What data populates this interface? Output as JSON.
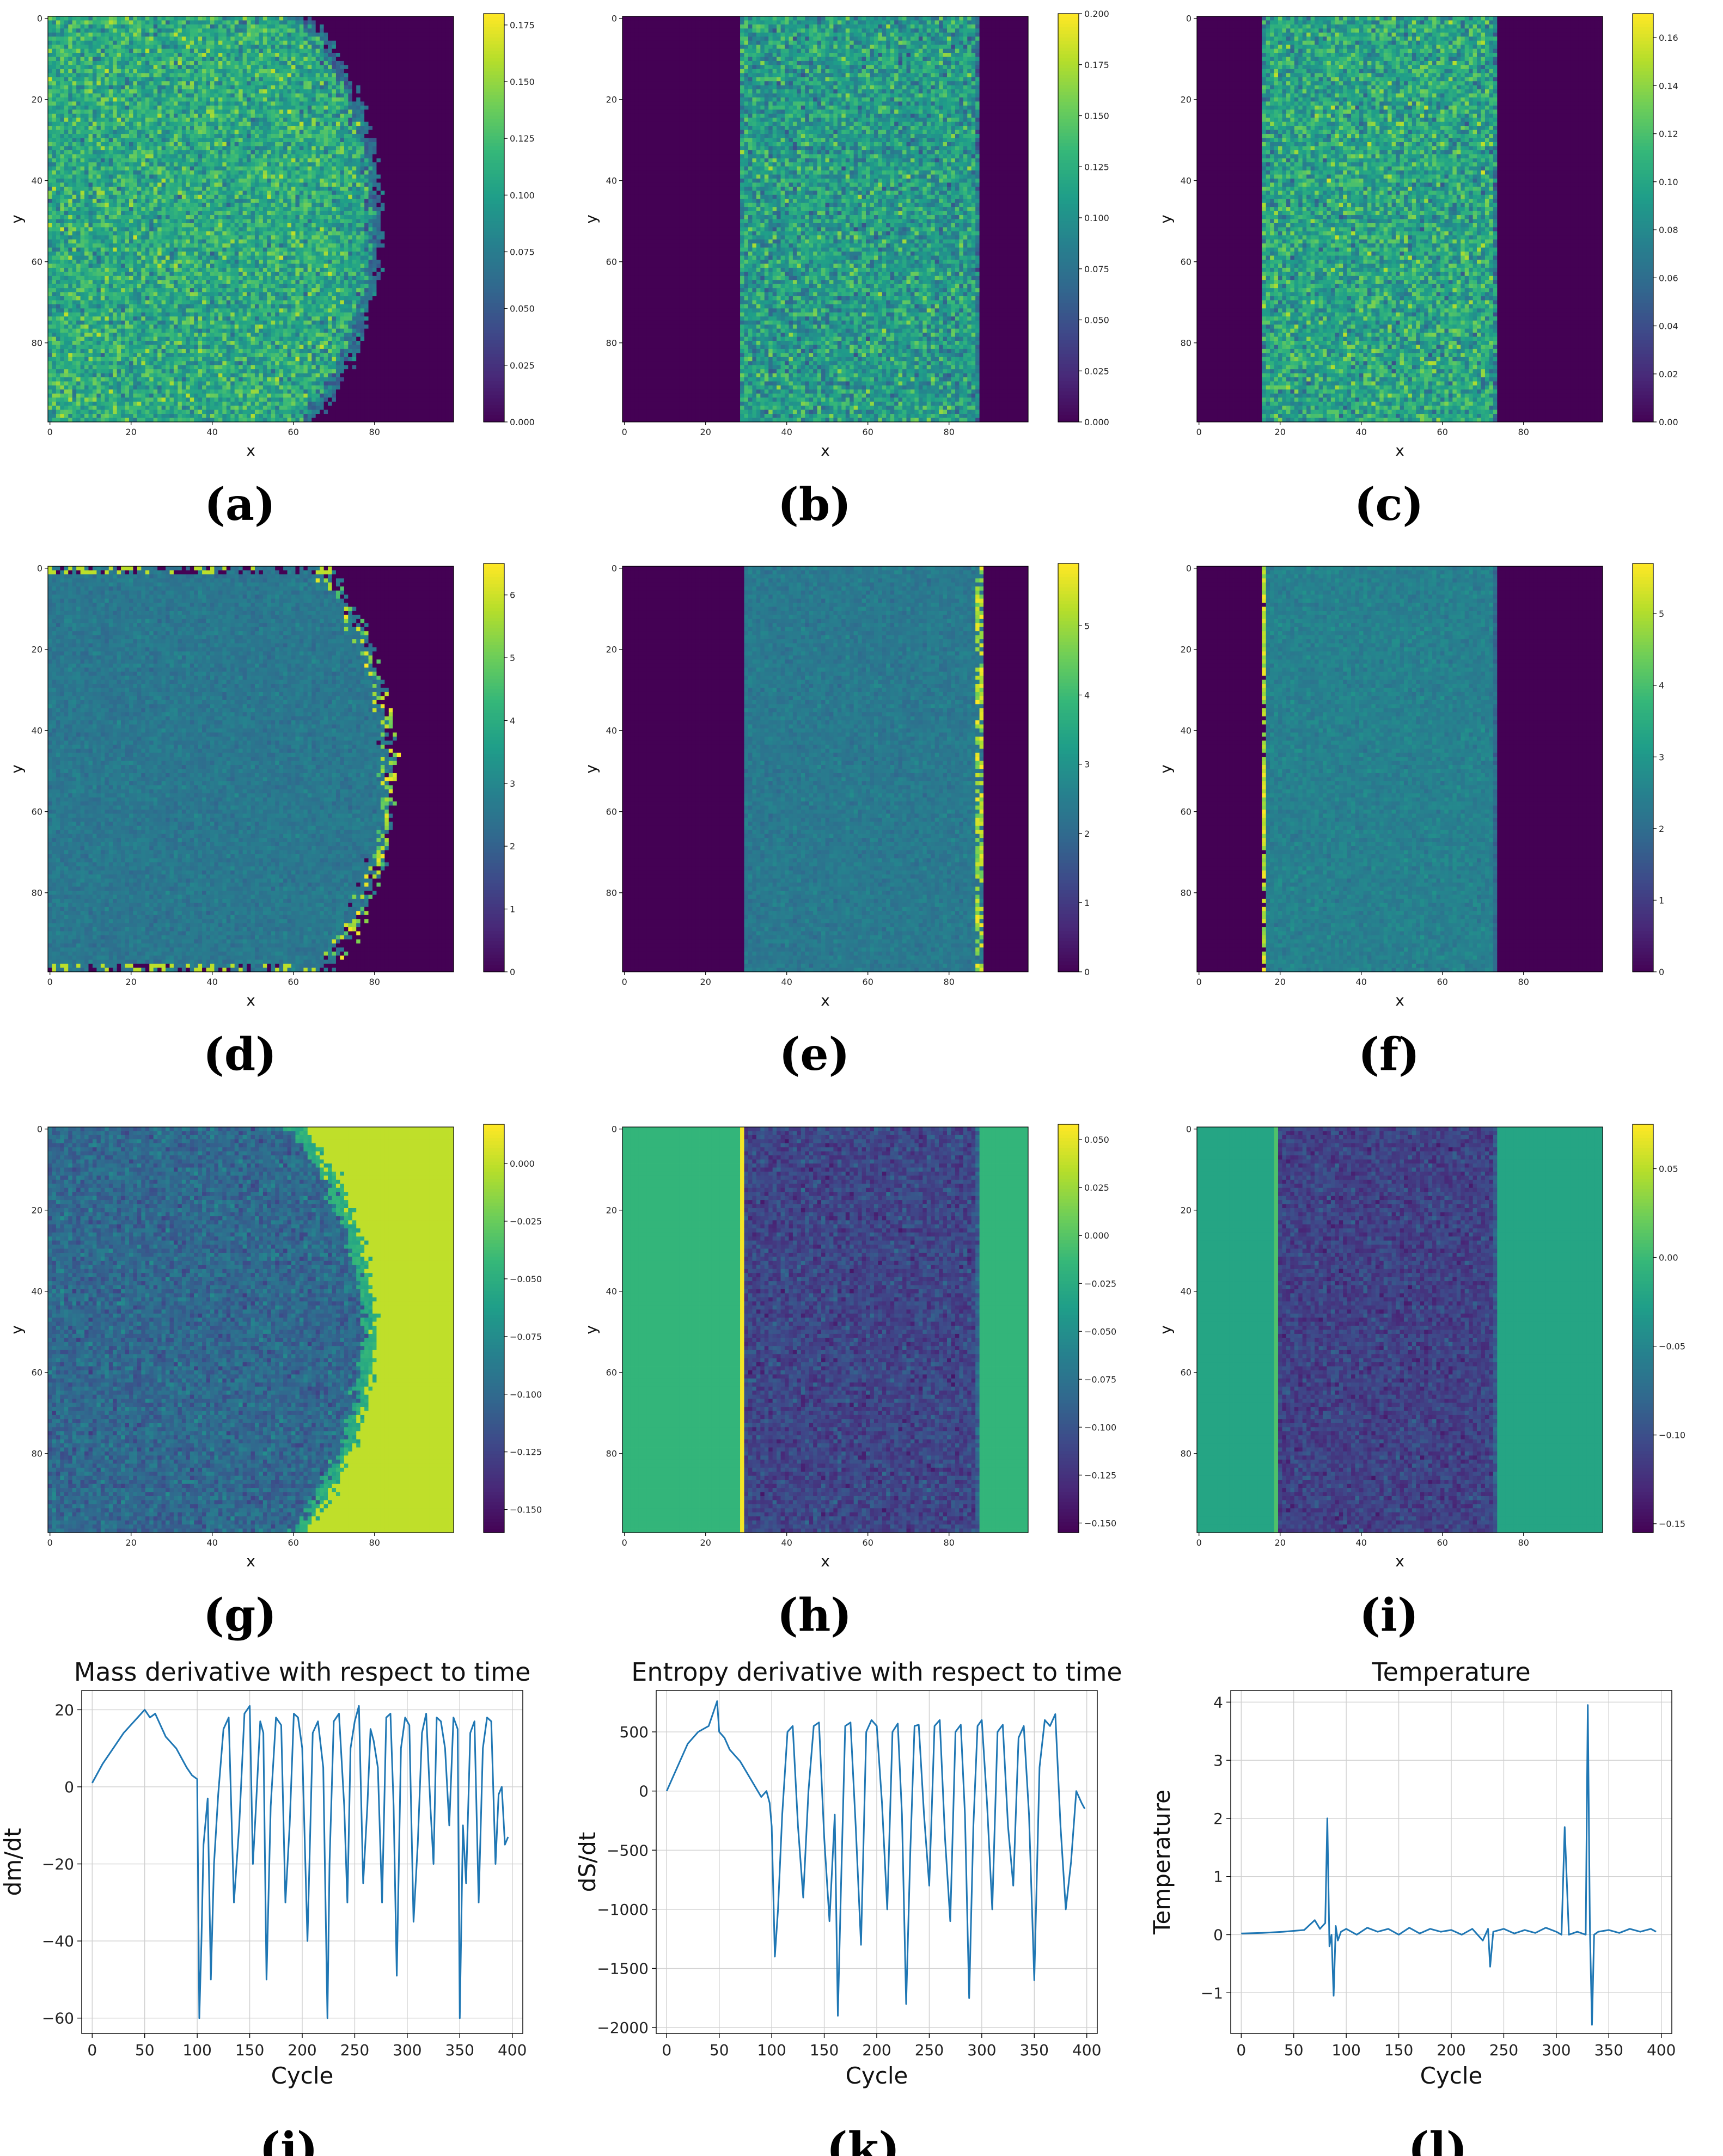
{
  "colors": {
    "viridis": [
      "#440154",
      "#482878",
      "#3e4989",
      "#31688e",
      "#26828e",
      "#1f9e89",
      "#35b779",
      "#6ece58",
      "#b5de2b",
      "#fde725"
    ],
    "line": "#1f77b4",
    "grid": "#d0d0d0"
  },
  "chart_data": [
    {
      "id": "a",
      "type": "heatmap",
      "panel_label": "(a)",
      "shape": "circle",
      "xlabel": "x",
      "ylabel": "y",
      "x_ticks": [
        "0",
        "20",
        "40",
        "60",
        "80"
      ],
      "y_ticks": [
        "0",
        "20",
        "40",
        "60",
        "80"
      ],
      "circle": {
        "cx": 0,
        "cy": 50,
        "r": 82
      },
      "mean": 0.11,
      "noise": 0.035,
      "inside_level": 0.6,
      "colorbar": {
        "min": 0.0,
        "max": 0.18,
        "ticks": [
          "0.000",
          "0.025",
          "0.050",
          "0.075",
          "0.100",
          "0.125",
          "0.150",
          "0.175"
        ],
        "values": [
          0,
          0.025,
          0.05,
          0.075,
          0.1,
          0.125,
          0.15,
          0.175
        ]
      }
    },
    {
      "id": "b",
      "type": "heatmap",
      "panel_label": "(b)",
      "shape": "band",
      "xlabel": "x",
      "ylabel": "y",
      "x_ticks": [
        "0",
        "20",
        "40",
        "60",
        "80"
      ],
      "y_ticks": [
        "0",
        "20",
        "40",
        "60",
        "80"
      ],
      "band": {
        "start": 29,
        "end": 88
      },
      "mean": 0.11,
      "noise": 0.04,
      "colorbar": {
        "min": 0.0,
        "max": 0.2,
        "ticks": [
          "0.000",
          "0.025",
          "0.050",
          "0.075",
          "0.100",
          "0.125",
          "0.150",
          "0.175",
          "0.200"
        ],
        "values": [
          0,
          0.025,
          0.05,
          0.075,
          0.1,
          0.125,
          0.15,
          0.175,
          0.2
        ]
      }
    },
    {
      "id": "c",
      "type": "heatmap",
      "panel_label": "(c)",
      "shape": "band",
      "xlabel": "x",
      "ylabel": "y",
      "x_ticks": [
        "0",
        "20",
        "40",
        "60",
        "80"
      ],
      "y_ticks": [
        "0",
        "20",
        "40",
        "60",
        "80"
      ],
      "band": {
        "start": 16,
        "end": 74
      },
      "mean": 0.1,
      "noise": 0.035,
      "colorbar": {
        "min": 0.0,
        "max": 0.17,
        "ticks": [
          "0.00",
          "0.02",
          "0.04",
          "0.06",
          "0.08",
          "0.10",
          "0.12",
          "0.14",
          "0.16"
        ],
        "values": [
          0,
          0.02,
          0.04,
          0.06,
          0.08,
          0.1,
          0.12,
          0.14,
          0.16
        ]
      }
    },
    {
      "id": "d",
      "type": "heatmap",
      "panel_label": "(d)",
      "shape": "circle",
      "xlabel": "x",
      "ylabel": "y",
      "x_ticks": [
        "0",
        "20",
        "40",
        "60",
        "80"
      ],
      "y_ticks": [
        "0",
        "20",
        "40",
        "60",
        "80"
      ],
      "circle": {
        "cx": 0,
        "cy": 50,
        "r": 85
      },
      "mean": 2.6,
      "noise": 0.35,
      "edge_high": true,
      "colorbar": {
        "min": 0,
        "max": 6.5,
        "ticks": [
          "0",
          "1",
          "2",
          "3",
          "4",
          "5",
          "6"
        ],
        "values": [
          0,
          1,
          2,
          3,
          4,
          5,
          6
        ]
      }
    },
    {
      "id": "e",
      "type": "heatmap",
      "panel_label": "(e)",
      "shape": "band",
      "xlabel": "x",
      "ylabel": "y",
      "x_ticks": [
        "0",
        "20",
        "40",
        "60",
        "80"
      ],
      "y_ticks": [
        "0",
        "20",
        "40",
        "60",
        "80"
      ],
      "band": {
        "start": 30,
        "end": 89
      },
      "mean": 2.4,
      "noise": 0.3,
      "edge_right_high": true,
      "colorbar": {
        "min": 0,
        "max": 5.9,
        "ticks": [
          "0",
          "1",
          "2",
          "3",
          "4",
          "5"
        ],
        "values": [
          0,
          1,
          2,
          3,
          4,
          5
        ]
      }
    },
    {
      "id": "f",
      "type": "heatmap",
      "panel_label": "(f)",
      "shape": "band",
      "xlabel": "x",
      "ylabel": "y",
      "x_ticks": [
        "0",
        "20",
        "40",
        "60",
        "80"
      ],
      "y_ticks": [
        "0",
        "20",
        "40",
        "60",
        "80"
      ],
      "band": {
        "start": 16,
        "end": 74
      },
      "mean": 2.5,
      "noise": 0.3,
      "edge_left_high": true,
      "colorbar": {
        "min": 0,
        "max": 5.7,
        "ticks": [
          "0",
          "1",
          "2",
          "3",
          "4",
          "5"
        ],
        "values": [
          0,
          1,
          2,
          3,
          4,
          5
        ]
      }
    },
    {
      "id": "g",
      "type": "heatmap",
      "panel_label": "(g)",
      "shape": "circle",
      "xlabel": "x",
      "ylabel": "y",
      "x_ticks": [
        "0",
        "20",
        "40",
        "60",
        "80"
      ],
      "y_ticks": [
        "0",
        "20",
        "40",
        "60",
        "80"
      ],
      "circle": {
        "cx": 0,
        "cy": 50,
        "r": 80
      },
      "mean": -0.1,
      "noise": 0.018,
      "outside": 0.0,
      "inside_level": 0.5,
      "colorbar": {
        "min": -0.16,
        "max": 0.017,
        "ticks": [
          "0.000",
          "−0.025",
          "−0.050",
          "−0.075",
          "−0.100",
          "−0.125",
          "−0.150"
        ],
        "values": [
          0,
          -0.025,
          -0.05,
          -0.075,
          -0.1,
          -0.125,
          -0.15
        ]
      }
    },
    {
      "id": "h",
      "type": "heatmap",
      "panel_label": "(h)",
      "shape": "band",
      "xlabel": "x",
      "ylabel": "y",
      "x_ticks": [
        "0",
        "20",
        "40",
        "60",
        "80"
      ],
      "y_ticks": [
        "0",
        "20",
        "40",
        "60",
        "80"
      ],
      "band": {
        "start": 30,
        "end": 88
      },
      "mean": -0.11,
      "noise": 0.02,
      "outside": -0.015,
      "edge_line": {
        "col": 29,
        "value": 0.055
      },
      "colorbar": {
        "min": -0.155,
        "max": 0.058,
        "ticks": [
          "0.050",
          "0.025",
          "0.000",
          "−0.025",
          "−0.050",
          "−0.075",
          "−0.100",
          "−0.125",
          "−0.150"
        ],
        "values": [
          0.05,
          0.025,
          0,
          -0.025,
          -0.05,
          -0.075,
          -0.1,
          -0.125,
          -0.15
        ]
      }
    },
    {
      "id": "i",
      "type": "heatmap",
      "panel_label": "(i)",
      "shape": "band",
      "xlabel": "x",
      "ylabel": "y",
      "x_ticks": [
        "0",
        "20",
        "40",
        "60",
        "80"
      ],
      "y_ticks": [
        "0",
        "20",
        "40",
        "60",
        "80"
      ],
      "band": {
        "start": 20,
        "end": 74
      },
      "mean": -0.11,
      "noise": 0.02,
      "outside": -0.02,
      "edge_line": {
        "col": 19,
        "value": 0.01
      },
      "colorbar": {
        "min": -0.155,
        "max": 0.075,
        "ticks": [
          "0.05",
          "0.00",
          "−0.05",
          "−0.10",
          "−0.15"
        ],
        "values": [
          0.05,
          0,
          -0.05,
          -0.1,
          -0.15
        ]
      }
    },
    {
      "id": "j",
      "type": "line",
      "panel_label": "(j)",
      "title": "Mass derivative with respect to time",
      "xlabel": "Cycle",
      "ylabel": "dm/dt",
      "xlim": [
        -10,
        410
      ],
      "ylim": [
        -64,
        25
      ],
      "x_ticks": [
        "0",
        "50",
        "100",
        "150",
        "200",
        "250",
        "300",
        "350",
        "400"
      ],
      "x_tick_values": [
        0,
        50,
        100,
        150,
        200,
        250,
        300,
        350,
        400
      ],
      "y_ticks": [
        "20",
        "0",
        "−20",
        "−40",
        "−60"
      ],
      "y_tick_values": [
        20,
        0,
        -20,
        -40,
        -60
      ],
      "x": [
        0,
        10,
        20,
        30,
        40,
        50,
        55,
        60,
        70,
        80,
        90,
        95,
        100,
        102,
        104,
        106,
        110,
        113,
        116,
        120,
        125,
        130,
        135,
        140,
        145,
        150,
        153,
        156,
        160,
        163,
        166,
        170,
        175,
        180,
        184,
        188,
        192,
        196,
        200,
        205,
        210,
        215,
        220,
        224,
        226,
        230,
        235,
        240,
        243,
        246,
        250,
        254,
        258,
        262,
        265,
        268,
        272,
        276,
        280,
        284,
        287,
        290,
        294,
        298,
        302,
        306,
        310,
        314,
        318,
        322,
        325,
        328,
        332,
        336,
        340,
        344,
        348,
        350,
        353,
        356,
        360,
        364,
        368,
        372,
        376,
        380,
        384,
        387,
        390,
        393,
        396
      ],
      "y": [
        1,
        6,
        10,
        14,
        17,
        20,
        18,
        19,
        13,
        10,
        5,
        3,
        2,
        -60,
        -40,
        -15,
        -3,
        -50,
        -20,
        -2,
        15,
        18,
        -30,
        -10,
        19,
        21,
        -20,
        -5,
        17,
        14,
        -50,
        -5,
        18,
        16,
        -30,
        -10,
        19,
        18,
        10,
        -40,
        14,
        17,
        5,
        -60,
        -20,
        17,
        19,
        -5,
        -30,
        10,
        17,
        21,
        -25,
        -5,
        15,
        12,
        5,
        -30,
        18,
        19,
        -5,
        -49,
        10,
        18,
        16,
        -35,
        -15,
        14,
        19,
        -5,
        -20,
        18,
        17,
        10,
        -10,
        18,
        15,
        -60,
        -10,
        -25,
        14,
        17,
        -30,
        10,
        18,
        17,
        -20,
        -2,
        0,
        -15,
        -13
      ]
    },
    {
      "id": "k",
      "type": "line",
      "panel_label": "(k)",
      "title": "Entropy derivative with respect to time",
      "xlabel": "Cycle",
      "ylabel": "dS/dt",
      "xlim": [
        -10,
        410
      ],
      "ylim": [
        -2050,
        850
      ],
      "x_ticks": [
        "0",
        "50",
        "100",
        "150",
        "200",
        "250",
        "300",
        "350",
        "400"
      ],
      "x_tick_values": [
        0,
        50,
        100,
        150,
        200,
        250,
        300,
        350,
        400
      ],
      "y_ticks": [
        "500",
        "0",
        "−500",
        "−1000",
        "−1500",
        "−2000"
      ],
      "y_tick_values": [
        500,
        0,
        -500,
        -1000,
        -1500,
        -2000
      ],
      "x": [
        0,
        10,
        20,
        30,
        40,
        48,
        50,
        55,
        60,
        70,
        80,
        90,
        95,
        98,
        100,
        103,
        106,
        110,
        115,
        120,
        125,
        130,
        135,
        140,
        145,
        150,
        155,
        160,
        163,
        166,
        170,
        175,
        180,
        185,
        190,
        195,
        200,
        205,
        210,
        215,
        220,
        224,
        228,
        232,
        236,
        240,
        245,
        250,
        255,
        260,
        265,
        270,
        275,
        280,
        284,
        288,
        292,
        296,
        300,
        305,
        310,
        315,
        320,
        325,
        330,
        335,
        340,
        345,
        350,
        355,
        360,
        365,
        370,
        375,
        380,
        385,
        390,
        395,
        398
      ],
      "y": [
        0,
        200,
        400,
        500,
        550,
        760,
        500,
        450,
        350,
        250,
        100,
        -50,
        0,
        -100,
        -300,
        -1400,
        -1000,
        -200,
        500,
        550,
        -300,
        -900,
        0,
        550,
        580,
        -400,
        -1100,
        -200,
        -1900,
        -800,
        550,
        580,
        -300,
        -1300,
        500,
        600,
        550,
        -100,
        -1000,
        500,
        570,
        -200,
        -1800,
        -500,
        550,
        560,
        -200,
        -800,
        550,
        600,
        -400,
        -1100,
        500,
        560,
        -200,
        -1750,
        -300,
        550,
        600,
        -100,
        -1000,
        500,
        560,
        -300,
        -800,
        450,
        550,
        -200,
        -1600,
        200,
        600,
        550,
        650,
        -300,
        -1000,
        -600,
        0,
        -100,
        -150
      ]
    },
    {
      "id": "l",
      "type": "line",
      "panel_label": "(l)",
      "title": "Temperature",
      "xlabel": "Cycle",
      "ylabel": "Temperature",
      "xlim": [
        -10,
        410
      ],
      "ylim": [
        -1.7,
        4.2
      ],
      "x_ticks": [
        "0",
        "50",
        "100",
        "150",
        "200",
        "250",
        "300",
        "350",
        "400"
      ],
      "x_tick_values": [
        0,
        50,
        100,
        150,
        200,
        250,
        300,
        350,
        400
      ],
      "y_ticks": [
        "4",
        "3",
        "2",
        "1",
        "0",
        "−1"
      ],
      "y_tick_values": [
        4,
        3,
        2,
        1,
        0,
        -1
      ],
      "x": [
        0,
        20,
        40,
        60,
        70,
        75,
        80,
        82,
        84,
        86,
        88,
        90,
        92,
        95,
        100,
        110,
        120,
        130,
        140,
        150,
        160,
        170,
        180,
        190,
        200,
        210,
        220,
        230,
        235,
        237,
        240,
        250,
        260,
        270,
        280,
        290,
        300,
        305,
        308,
        312,
        320,
        328,
        330,
        332,
        334,
        336,
        340,
        350,
        360,
        370,
        380,
        390,
        395
      ],
      "y": [
        0.02,
        0.03,
        0.05,
        0.08,
        0.25,
        0.1,
        0.2,
        2.0,
        -0.2,
        0.0,
        -1.05,
        0.15,
        -0.1,
        0.05,
        0.1,
        0.0,
        0.12,
        0.05,
        0.1,
        0.0,
        0.12,
        0.02,
        0.1,
        0.05,
        0.08,
        0.0,
        0.1,
        -0.1,
        0.1,
        -0.55,
        0.05,
        0.1,
        0.02,
        0.08,
        0.03,
        0.12,
        0.05,
        0.0,
        1.85,
        0.0,
        0.05,
        0.0,
        3.95,
        0.1,
        -1.55,
        0.0,
        0.05,
        0.08,
        0.03,
        0.1,
        0.05,
        0.1,
        0.05
      ]
    }
  ]
}
